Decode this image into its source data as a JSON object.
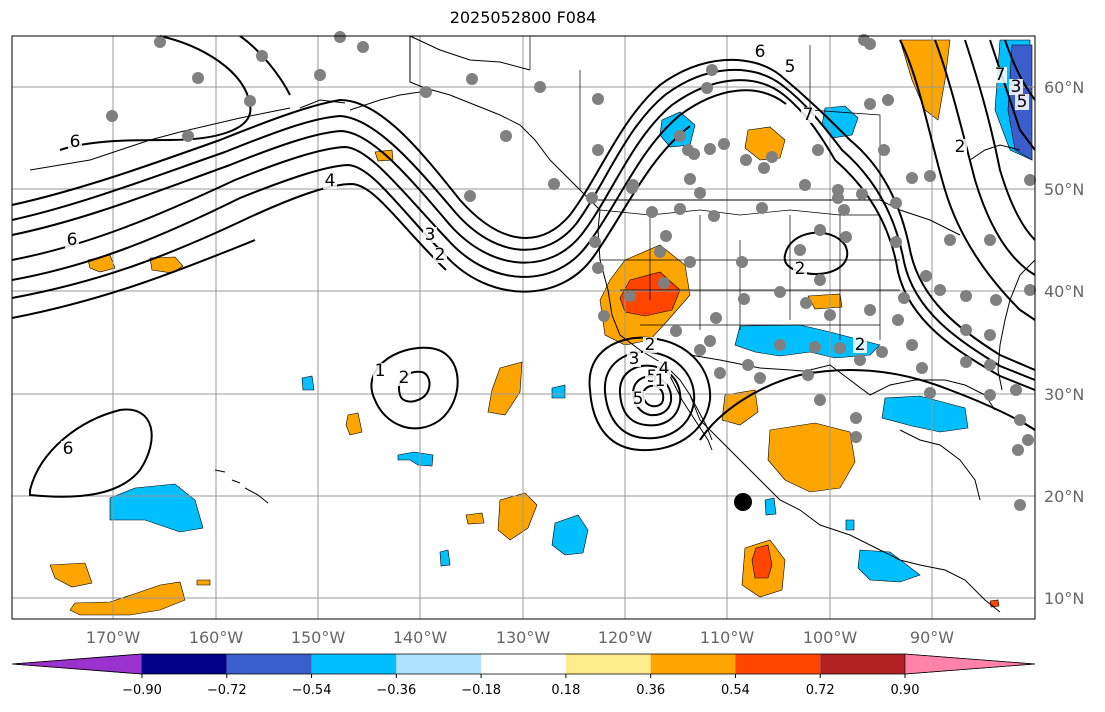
{
  "title": "2025052800 F084",
  "map": {
    "lon_ticks": [
      "170°W",
      "160°W",
      "150°W",
      "140°W",
      "130°W",
      "120°W",
      "110°W",
      "100°W",
      "90°W"
    ],
    "lat_ticks": [
      "60°N",
      "50°N",
      "40°N",
      "30°N",
      "20°N",
      "10°N"
    ],
    "contour_labels": [
      "6",
      "5",
      "7",
      "6",
      "4",
      "3",
      "2",
      "6",
      "2",
      "1",
      "2",
      "2",
      "3",
      "5",
      "4",
      "2",
      "2",
      "7",
      "3",
      "5",
      "6",
      "1",
      "5"
    ],
    "positive_fill": "#ffa500",
    "strong_positive_fill": "#ff4500",
    "negative_fill": "#00bfff",
    "strong_negative_fill": "#3a5fcd",
    "station_dot_color": "#808080",
    "marker_color": "#000000"
  },
  "colorbar": {
    "labels": [
      "−0.90",
      "−0.72",
      "−0.54",
      "−0.36",
      "−0.18",
      "0.18",
      "0.36",
      "0.54",
      "0.72",
      "0.90"
    ],
    "colors": [
      "#9a32cd",
      "#00008b",
      "#3a5fcd",
      "#00bfff",
      "#b0e2ff",
      "#ffffff",
      "#ffec8b",
      "#ffa500",
      "#ff4500",
      "#b22222",
      "#ff82ab"
    ]
  }
}
